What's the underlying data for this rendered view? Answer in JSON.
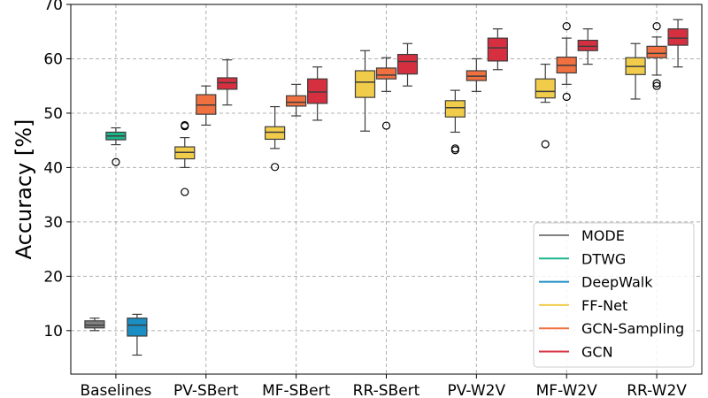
{
  "chart_data": {
    "type": "box",
    "title": "",
    "xlabel": "",
    "ylabel": "Accuracy [%]",
    "ylim": [
      2,
      70
    ],
    "yticks": [
      10,
      20,
      30,
      40,
      50,
      60,
      70
    ],
    "grid": true,
    "legend_position": "lower-right",
    "categories": [
      "Baselines",
      "PV-SBert",
      "MF-SBert",
      "RR-SBert",
      "PV-W2V",
      "MF-W2V",
      "RR-W2V"
    ],
    "series": [
      {
        "name": "MODE",
        "color": "#808080"
      },
      {
        "name": "DTWG",
        "color": "#1ab58a"
      },
      {
        "name": "DeepWalk",
        "color": "#1b8fc4"
      },
      {
        "name": "FF-Net",
        "color": "#f0cc4a"
      },
      {
        "name": "GCN-Sampling",
        "color": "#f07040"
      },
      {
        "name": "GCN",
        "color": "#d63040"
      }
    ],
    "boxes": [
      {
        "category": "Baselines",
        "series": "MODE",
        "whislo": 10.0,
        "q1": 10.5,
        "med": 11.0,
        "q3": 11.8,
        "whishi": 12.3,
        "fliers": []
      },
      {
        "category": "Baselines",
        "series": "DTWG",
        "whislo": 44.2,
        "q1": 45.1,
        "med": 45.8,
        "q3": 46.5,
        "whishi": 47.3,
        "fliers": [
          41.0
        ]
      },
      {
        "category": "Baselines",
        "series": "DeepWalk",
        "whislo": 5.5,
        "q1": 9.0,
        "med": 11.0,
        "q3": 12.3,
        "whishi": 13.0,
        "fliers": []
      },
      {
        "category": "PV-SBert",
        "series": "FF-Net",
        "whislo": 40.0,
        "q1": 41.6,
        "med": 42.8,
        "q3": 43.8,
        "whishi": 45.5,
        "fliers": [
          47.8,
          47.6,
          35.5
        ]
      },
      {
        "category": "PV-SBert",
        "series": "GCN-Sampling",
        "whislo": 47.8,
        "q1": 49.8,
        "med": 51.5,
        "q3": 53.4,
        "whishi": 55.0,
        "fliers": []
      },
      {
        "category": "PV-SBert",
        "series": "GCN",
        "whislo": 51.5,
        "q1": 54.4,
        "med": 55.6,
        "q3": 56.5,
        "whishi": 59.8,
        "fliers": []
      },
      {
        "category": "MF-SBert",
        "series": "FF-Net",
        "whislo": 43.5,
        "q1": 45.2,
        "med": 46.5,
        "q3": 47.5,
        "whishi": 51.2,
        "fliers": [
          40.1
        ]
      },
      {
        "category": "MF-SBert",
        "series": "GCN-Sampling",
        "whislo": 49.5,
        "q1": 51.3,
        "med": 52.0,
        "q3": 53.2,
        "whishi": 55.3,
        "fliers": []
      },
      {
        "category": "MF-SBert",
        "series": "GCN",
        "whislo": 48.7,
        "q1": 51.8,
        "med": 53.9,
        "q3": 56.3,
        "whishi": 58.5,
        "fliers": []
      },
      {
        "category": "RR-SBert",
        "series": "FF-Net",
        "whislo": 46.7,
        "q1": 52.9,
        "med": 55.7,
        "q3": 57.8,
        "whishi": 61.5,
        "fliers": []
      },
      {
        "category": "RR-SBert",
        "series": "GCN-Sampling",
        "whislo": 54.0,
        "q1": 56.3,
        "med": 57.0,
        "q3": 58.3,
        "whishi": 60.2,
        "fliers": [
          47.7
        ]
      },
      {
        "category": "RR-SBert",
        "series": "GCN",
        "whislo": 55.0,
        "q1": 57.2,
        "med": 59.5,
        "q3": 60.8,
        "whishi": 62.8,
        "fliers": []
      },
      {
        "category": "PV-W2V",
        "series": "FF-Net",
        "whislo": 46.5,
        "q1": 49.3,
        "med": 51.0,
        "q3": 52.3,
        "whishi": 54.2,
        "fliers": [
          43.5,
          43.2
        ]
      },
      {
        "category": "PV-W2V",
        "series": "GCN-Sampling",
        "whislo": 54.0,
        "q1": 56.0,
        "med": 56.8,
        "q3": 57.8,
        "whishi": 60.0,
        "fliers": []
      },
      {
        "category": "PV-W2V",
        "series": "GCN",
        "whislo": 58.0,
        "q1": 59.6,
        "med": 62.0,
        "q3": 63.8,
        "whishi": 65.5,
        "fliers": []
      },
      {
        "category": "MF-W2V",
        "series": "FF-Net",
        "whislo": 52.0,
        "q1": 52.8,
        "med": 54.0,
        "q3": 56.3,
        "whishi": 59.0,
        "fliers": [
          44.3
        ]
      },
      {
        "category": "MF-W2V",
        "series": "GCN-Sampling",
        "whislo": 55.3,
        "q1": 57.4,
        "med": 58.8,
        "q3": 60.3,
        "whishi": 63.8,
        "fliers": [
          66.0,
          53.0
        ]
      },
      {
        "category": "MF-W2V",
        "series": "GCN",
        "whislo": 59.0,
        "q1": 61.5,
        "med": 62.3,
        "q3": 63.4,
        "whishi": 65.5,
        "fliers": []
      },
      {
        "category": "RR-W2V",
        "series": "FF-Net",
        "whislo": 52.6,
        "q1": 57.1,
        "med": 58.6,
        "q3": 60.2,
        "whishi": 62.8,
        "fliers": []
      },
      {
        "category": "RR-W2V",
        "series": "GCN-Sampling",
        "whislo": 57.0,
        "q1": 60.2,
        "med": 61.0,
        "q3": 62.3,
        "whishi": 64.0,
        "fliers": [
          66.0,
          55.5,
          55.0
        ]
      },
      {
        "category": "RR-W2V",
        "series": "GCN",
        "whislo": 58.5,
        "q1": 62.5,
        "med": 63.8,
        "q3": 65.5,
        "whishi": 67.2,
        "fliers": []
      }
    ]
  }
}
